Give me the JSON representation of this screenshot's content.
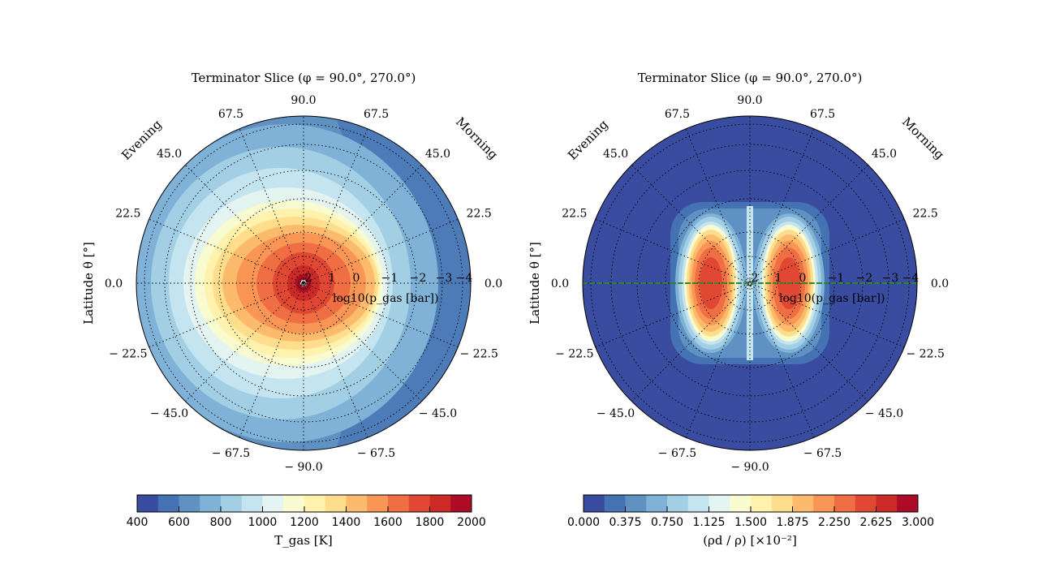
{
  "chart_data": [
    {
      "type": "polar-contour",
      "title": "Terminator Slice (φ = 90.0°, 270.0°)",
      "ylabel": "Latitude θ [°]",
      "side_labels": {
        "left": "Evening",
        "right": "Morning"
      },
      "angular_ticks": {
        "top": "90.0",
        "upper_left": "67.5",
        "upper_right": "67.5",
        "left_45": "45.0",
        "right_45": "45.0",
        "left_22": "22.5",
        "right_22": "22.5",
        "left_0": "0.0",
        "right_0": "0.0",
        "left_m22": "− 22.5",
        "right_m22": "− 22.5",
        "left_m45": "− 45.0",
        "right_m45": "− 45.0",
        "lower_left": "− 67.5",
        "lower_right": "− 67.5",
        "bottom": "− 90.0"
      },
      "radial_ticks": [
        "2",
        "1",
        "0",
        "−1",
        "−2",
        "−3",
        "−4"
      ],
      "radial_label": "log10(p_gas [bar])",
      "colorbar": {
        "label": "T_gas [K]",
        "ticks": [
          "400",
          "600",
          "800",
          "1000",
          "1200",
          "1400",
          "1600",
          "1800",
          "2000"
        ],
        "range": [
          400,
          2000
        ]
      },
      "field_description_levels_K": [
        2000,
        1800,
        1600,
        1400,
        1200,
        1000,
        800,
        600
      ]
    },
    {
      "type": "polar-contour",
      "title": "Terminator Slice (φ = 90.0°, 270.0°)",
      "ylabel": "Latitude θ [°]",
      "side_labels": {
        "left": "Evening",
        "right": "Morning"
      },
      "angular_ticks": {
        "top": "90.0",
        "upper_left": "67.5",
        "upper_right": "67.5",
        "left_45": "45.0",
        "right_45": "45.0",
        "left_22": "22.5",
        "right_22": "22.5",
        "left_0": "0.0",
        "right_0": "0.0",
        "left_m22": "− 22.5",
        "right_m22": "− 22.5",
        "left_m45": "− 45.0",
        "right_m45": "− 45.0",
        "lower_left": "− 67.5",
        "lower_right": "− 67.5",
        "bottom": "− 90.0"
      },
      "radial_ticks": [
        "2",
        "1",
        "0",
        "−1",
        "−2",
        "−3",
        "−4"
      ],
      "radial_label": "log10(p_gas [bar])",
      "colorbar": {
        "label": "(ρd / ρ) [×10⁻²]",
        "ticks": [
          "0.000",
          "0.375",
          "0.750",
          "1.125",
          "1.500",
          "1.875",
          "2.250",
          "2.625",
          "3.000"
        ],
        "range": [
          0,
          3
        ]
      },
      "equator_line_color": "#2a8a2a"
    }
  ],
  "colormap": [
    "#3a4c9f",
    "#4572b2",
    "#5f91c3",
    "#7fb2d6",
    "#a2cfe4",
    "#c4e4ef",
    "#e3f4f1",
    "#f7fbcf",
    "#fef2ac",
    "#fedd8d",
    "#fcbb6c",
    "#f99555",
    "#f06e44",
    "#e04834",
    "#cc2a27",
    "#ac0c26"
  ]
}
